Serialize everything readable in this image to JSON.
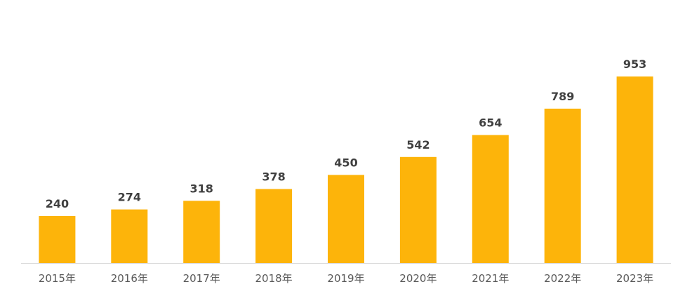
{
  "chart_data": {
    "type": "bar",
    "categories": [
      "2015年",
      "2016年",
      "2017年",
      "2018年",
      "2019年",
      "2020年",
      "2021年",
      "2022年",
      "2023年"
    ],
    "values": [
      240,
      274,
      318,
      378,
      450,
      542,
      654,
      789,
      953
    ],
    "title": "",
    "xlabel": "",
    "ylabel": "",
    "ylim": [
      0,
      1000
    ],
    "grid": false,
    "legend": "none",
    "data_labels": true,
    "colors": {
      "bar": "#FDB40A",
      "label": "#404040",
      "tick": "#595959",
      "axis": "#D9D9D9"
    }
  }
}
